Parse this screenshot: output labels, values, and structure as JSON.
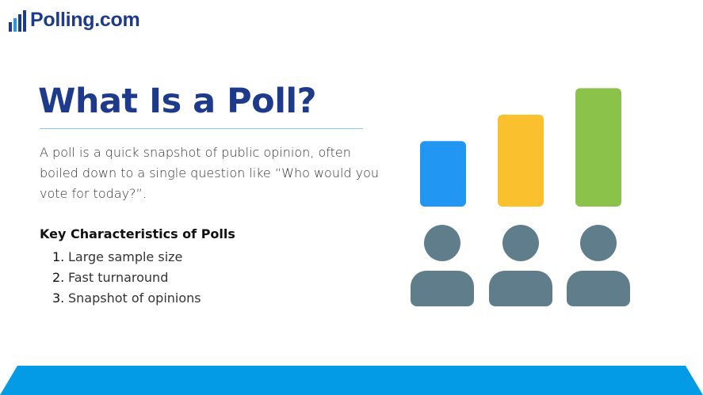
{
  "brand": {
    "name": "Polling.com",
    "logo_icon": "bar-stairs-icon",
    "brand_color": "#1e3a8a"
  },
  "slide": {
    "title": "What Is a Poll?",
    "description": "A poll is a quick snapshot of public opinion, often boiled down to a single question like “Who would you vote for today?”.",
    "key_heading": "Key Characteristics of Polls",
    "characteristics": [
      {
        "num": "1.",
        "text": "Large sample size"
      },
      {
        "num": "2.",
        "text": "Fast turnaround"
      },
      {
        "num": "3.",
        "text": "Snapshot of opinions"
      }
    ]
  },
  "illustration": {
    "icons": [
      "bar-icon",
      "person-icon"
    ],
    "bar_colors": [
      "#2196f3",
      "#fbc02d",
      "#8bc34a"
    ],
    "bar_levels": [
      0.47,
      0.66,
      0.85
    ],
    "person_color": "#607d8b"
  },
  "footer": {
    "color": "#039be5"
  }
}
